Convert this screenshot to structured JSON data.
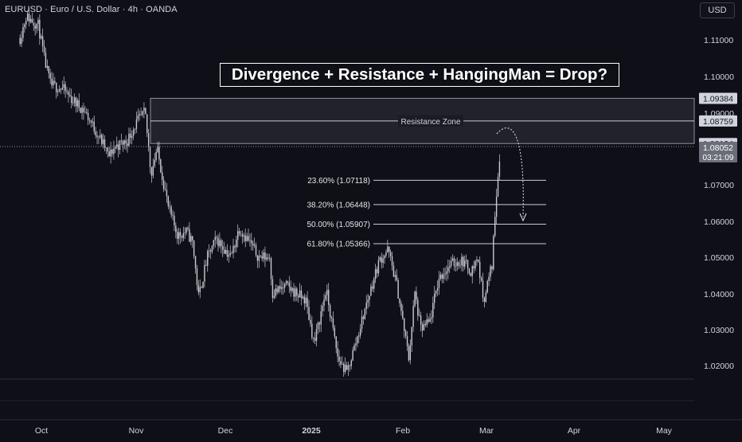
{
  "header": {
    "symbol": "EURUSD",
    "description": "Euro / U.S. Dollar",
    "interval": "4h",
    "source": "OANDA",
    "currency_button": "USD"
  },
  "annotation": {
    "headline": "Divergence + Resistance + HangingMan = Drop?",
    "resistance_zone_label": "Resistance Zone"
  },
  "colors": {
    "background": "#0f0f17",
    "candles": "#c8cbd2",
    "lines": "#c9ccd4",
    "label_bg": "#d1d4dc",
    "last_price_bg": "#6b6e78"
  },
  "chart_data": {
    "type": "candlestick",
    "title": "",
    "x_tick_labels": [
      "Oct",
      "Nov",
      "Dec",
      "2025",
      "Feb",
      "Mar",
      "Apr",
      "May"
    ],
    "y_tick_labels": [
      "1.11000",
      "1.10000",
      "1.09000",
      "1.07000",
      "1.06000",
      "1.05000",
      "1.04000",
      "1.03000",
      "1.02000"
    ],
    "ylim": [
      1.0135,
      1.1178
    ],
    "resistance_zone": {
      "upper": 1.09384,
      "middle": 1.08759,
      "lower": 1.08134,
      "label": "Resistance Zone"
    },
    "fibonacci_levels": [
      {
        "label": "23.60% (1.07118)",
        "value": 1.07118
      },
      {
        "label": "38.20% (1.06448)",
        "value": 1.06448
      },
      {
        "label": "50.00% (1.05907)",
        "value": 1.05907
      },
      {
        "label": "61.80% (1.05366)",
        "value": 1.05366
      }
    ],
    "price_labels": [
      "1.09384",
      "1.08759",
      "1.08134"
    ],
    "last_price": {
      "value": "1.08052",
      "countdown": "03:21:09"
    },
    "price_path": [
      [
        "2024-09-24",
        1.1105
      ],
      [
        "2024-09-26",
        1.1165
      ],
      [
        "2024-09-30",
        1.114
      ],
      [
        "2024-10-02",
        1.1045
      ],
      [
        "2024-10-04",
        1.0975
      ],
      [
        "2024-10-08",
        1.0965
      ],
      [
        "2024-10-11",
        1.0935
      ],
      [
        "2024-10-15",
        1.0905
      ],
      [
        "2024-10-18",
        1.086
      ],
      [
        "2024-10-22",
        1.08
      ],
      [
        "2024-10-23",
        1.0775
      ],
      [
        "2024-10-25",
        1.0805
      ],
      [
        "2024-10-29",
        1.082
      ],
      [
        "2024-11-01",
        1.087
      ],
      [
        "2024-11-04",
        1.09
      ],
      [
        "2024-11-06",
        1.073
      ],
      [
        "2024-11-08",
        1.08
      ],
      [
        "2024-11-12",
        1.063
      ],
      [
        "2024-11-15",
        1.056
      ],
      [
        "2024-11-18",
        1.057
      ],
      [
        "2024-11-20",
        1.054
      ],
      [
        "2024-11-22",
        1.039
      ],
      [
        "2024-11-25",
        1.05
      ],
      [
        "2024-11-28",
        1.055
      ],
      [
        "2024-12-03",
        1.05
      ],
      [
        "2024-12-06",
        1.058
      ],
      [
        "2024-12-09",
        1.055
      ],
      [
        "2024-12-13",
        1.05
      ],
      [
        "2024-12-17",
        1.05
      ],
      [
        "2024-12-18",
        1.04
      ],
      [
        "2024-12-23",
        1.042
      ],
      [
        "2024-12-30",
        1.038
      ],
      [
        "2025-01-02",
        1.026
      ],
      [
        "2025-01-06",
        1.041
      ],
      [
        "2025-01-10",
        1.022
      ],
      [
        "2025-01-13",
        1.018
      ],
      [
        "2025-01-17",
        1.029
      ],
      [
        "2025-01-20",
        1.038
      ],
      [
        "2025-01-24",
        1.049
      ],
      [
        "2025-01-27",
        1.052
      ],
      [
        "2025-01-30",
        1.042
      ],
      [
        "2025-02-03",
        1.022
      ],
      [
        "2025-02-05",
        1.04
      ],
      [
        "2025-02-07",
        1.03
      ],
      [
        "2025-02-10",
        1.032
      ],
      [
        "2025-02-13",
        1.044
      ],
      [
        "2025-02-17",
        1.048
      ],
      [
        "2025-02-21",
        1.049
      ],
      [
        "2025-02-24",
        1.046
      ],
      [
        "2025-02-26",
        1.05
      ],
      [
        "2025-02-28",
        1.038
      ],
      [
        "2025-03-03",
        1.048
      ],
      [
        "2025-03-04",
        1.062
      ],
      [
        "2025-03-05",
        1.072
      ],
      [
        "2025-03-06",
        1.081
      ]
    ]
  }
}
